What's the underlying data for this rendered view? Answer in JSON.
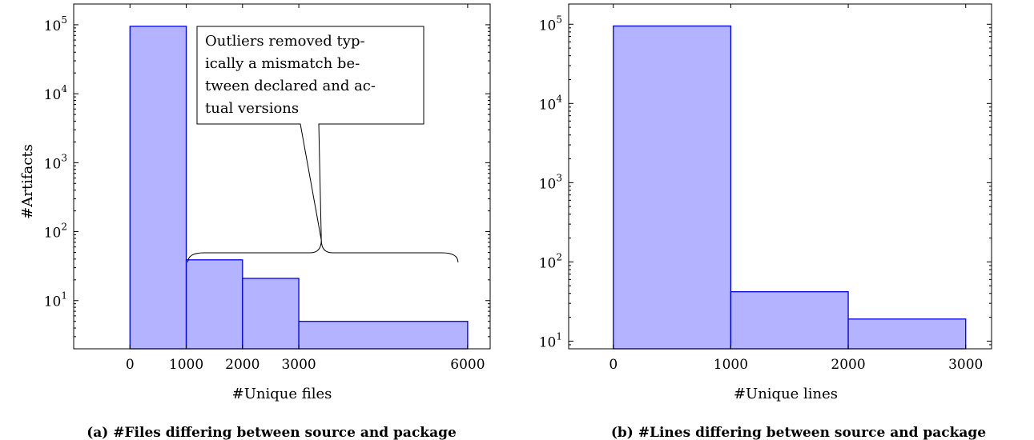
{
  "chart_data": [
    {
      "type": "bar",
      "scale_y": "log",
      "bins": [
        {
          "x0": 0,
          "x1": 1000,
          "value": 95000
        },
        {
          "x0": 1000,
          "x1": 2000,
          "value": 39
        },
        {
          "x0": 2000,
          "x1": 3000,
          "value": 21
        },
        {
          "x0": 3000,
          "x1": 6000,
          "value": 5
        }
      ],
      "xlim": [
        -1000,
        6400
      ],
      "ylim": [
        2,
        200000
      ],
      "xticks": [
        0,
        1000,
        2000,
        3000,
        6000
      ],
      "ytick_exponents": [
        1,
        2,
        3,
        4,
        5
      ],
      "xlabel": "#Unique files",
      "ylabel": "#Artifacts",
      "caption": "(a) #Files differing between source and package",
      "annotation": "Outliers removed typically a mismatch between declared and actual versions",
      "grid": false,
      "colors": {
        "fill": "#b3b3ff",
        "stroke": "#0000e6"
      }
    },
    {
      "type": "bar",
      "scale_y": "log",
      "bins": [
        {
          "x0": 0,
          "x1": 1000,
          "value": 95000
        },
        {
          "x0": 1000,
          "x1": 2000,
          "value": 42
        },
        {
          "x0": 2000,
          "x1": 3000,
          "value": 19
        }
      ],
      "xlim": [
        -380,
        3220
      ],
      "ylim": [
        8,
        180000
      ],
      "xticks": [
        0,
        1000,
        2000,
        3000
      ],
      "ytick_exponents": [
        1,
        2,
        3,
        4,
        5
      ],
      "xlabel": "#Unique lines",
      "ylabel": "",
      "caption": "(b) #Lines differing between source and package",
      "annotation": "",
      "grid": false,
      "colors": {
        "fill": "#b3b3ff",
        "stroke": "#0000e6"
      }
    }
  ]
}
